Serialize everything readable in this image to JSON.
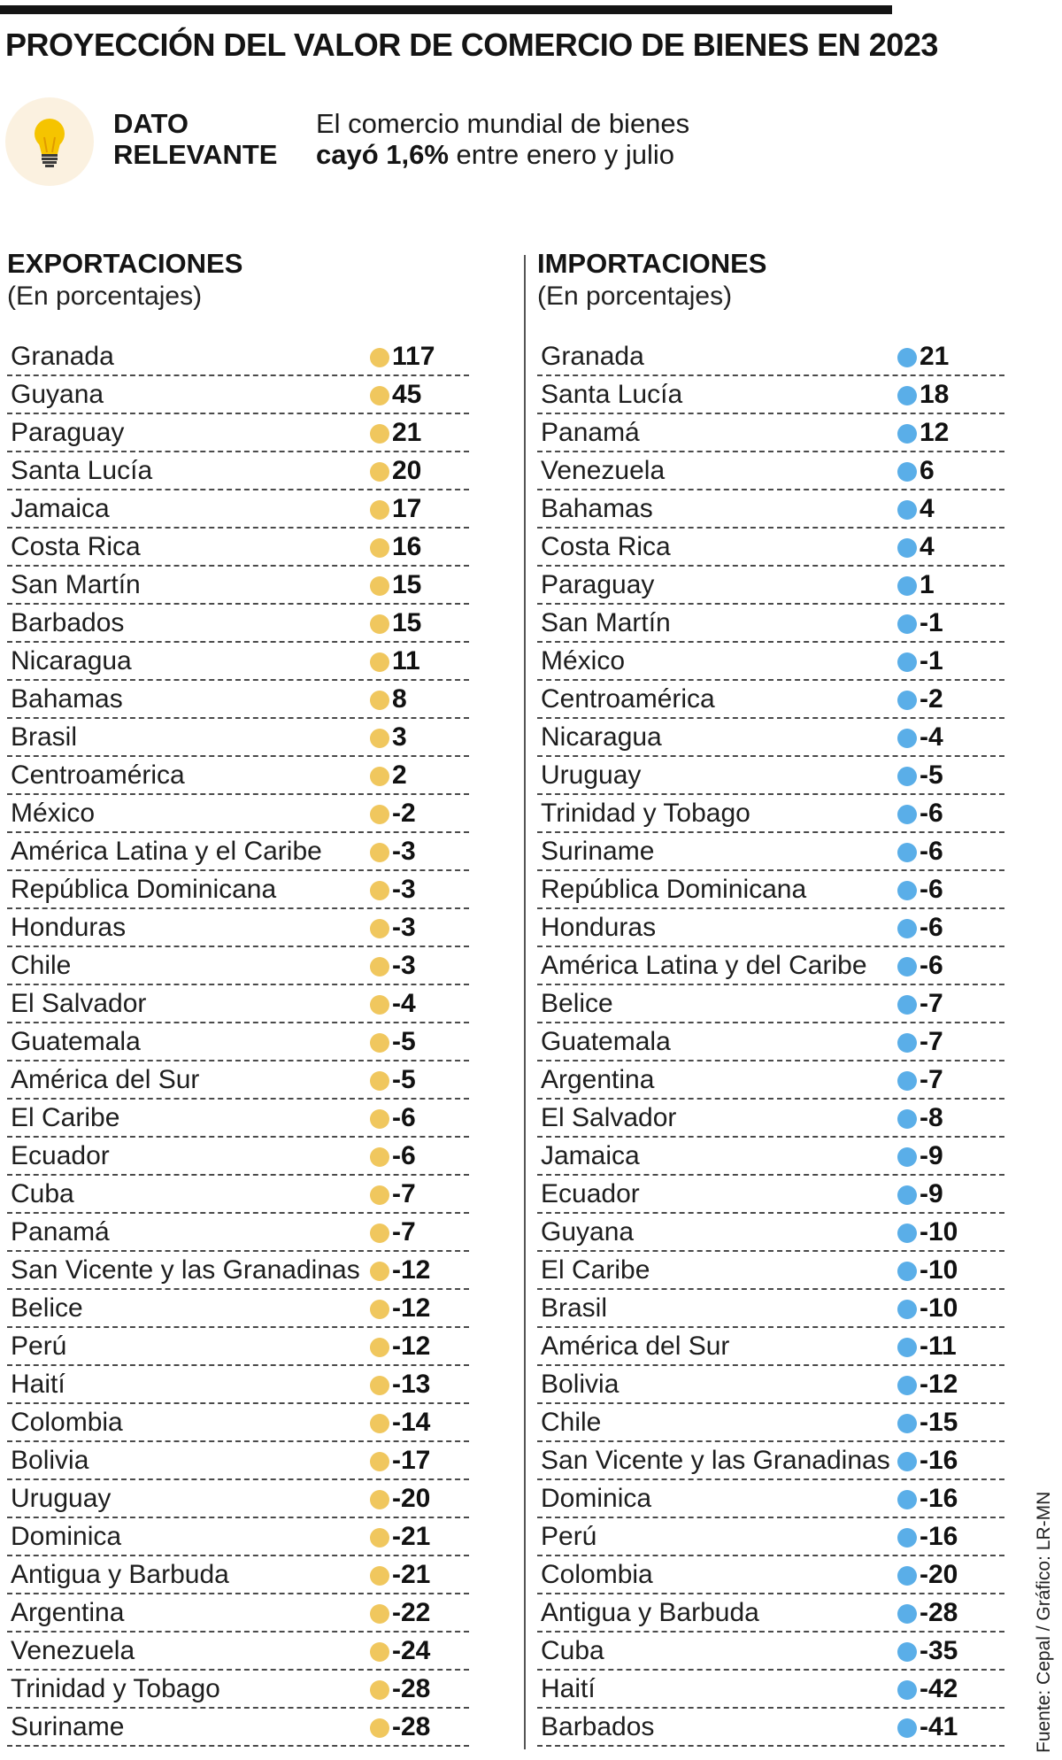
{
  "header": {
    "title": "PROYECCIÓN DEL VALOR DE COMERCIO DE BIENES EN 2023"
  },
  "dato": {
    "label_line1": "DATO",
    "label_line2": "RELEVANTE",
    "text_line1": "El comercio mundial de bienes",
    "text_bold": "cayó 1,6%",
    "text_rest": " entre enero y julio"
  },
  "source": "Fuente: Cepal / Gráfico: LR-MN",
  "colors": {
    "exportaciones_dot": "#f0c75e",
    "importaciones_dot": "#5aaee8"
  },
  "chart_data": [
    {
      "type": "table",
      "title": "EXPORTACIONES",
      "subtitle": "(En porcentajes)",
      "unit": "%",
      "categories": [
        "Granada",
        "Guyana",
        "Paraguay",
        "Santa Lucía",
        "Jamaica",
        "Costa Rica",
        "San Martín",
        "Barbados",
        "Nicaragua",
        "Bahamas",
        "Brasil",
        "Centroamérica",
        "México",
        "América Latina y el Caribe",
        "República Dominicana",
        "Honduras",
        "Chile",
        "El Salvador",
        "Guatemala",
        "América del Sur",
        "El Caribe",
        "Ecuador",
        "Cuba",
        "Panamá",
        "San Vicente y las Granadinas",
        "Belice",
        "Perú",
        "Haití",
        "Colombia",
        "Bolivia",
        "Uruguay",
        "Dominica",
        "Antigua y Barbuda",
        "Argentina",
        "Venezuela",
        "Trinidad y Tobago",
        "Suriname"
      ],
      "values": [
        117,
        45,
        21,
        20,
        17,
        16,
        15,
        15,
        11,
        8,
        3,
        2,
        -2,
        -3,
        -3,
        -3,
        -3,
        -4,
        -5,
        -5,
        -6,
        -6,
        -7,
        -7,
        -12,
        -12,
        -12,
        -13,
        -14,
        -17,
        -20,
        -21,
        -21,
        -22,
        -24,
        -28,
        -28
      ]
    },
    {
      "type": "table",
      "title": "IMPORTACIONES",
      "subtitle": "(En porcentajes)",
      "unit": "%",
      "categories": [
        "Granada",
        "Santa Lucía",
        "Panamá",
        "Venezuela",
        "Bahamas",
        "Costa Rica",
        "Paraguay",
        "San Martín",
        "México",
        "Centroamérica",
        "Nicaragua",
        "Uruguay",
        "Trinidad y Tobago",
        "Suriname",
        "República Dominicana",
        "Honduras",
        "América Latina y del Caribe",
        "Belice",
        "Guatemala",
        "Argentina",
        "El Salvador",
        "Jamaica",
        "Ecuador",
        "Guyana",
        "El Caribe",
        "Brasil",
        "América del Sur",
        "Bolivia",
        "Chile",
        "San Vicente y las Granadinas",
        "Dominica",
        "Perú",
        "Colombia",
        "Antigua y Barbuda",
        "Cuba",
        "Haití",
        "Barbados"
      ],
      "values": [
        21,
        18,
        12,
        6,
        4,
        4,
        1,
        -1,
        -1,
        -2,
        -4,
        -5,
        -6,
        -6,
        -6,
        -6,
        -6,
        -7,
        -7,
        -7,
        -8,
        -9,
        -9,
        -10,
        -10,
        -10,
        -11,
        -12,
        -15,
        -16,
        -16,
        -16,
        -20,
        -28,
        -35,
        -42,
        -41
      ]
    }
  ]
}
